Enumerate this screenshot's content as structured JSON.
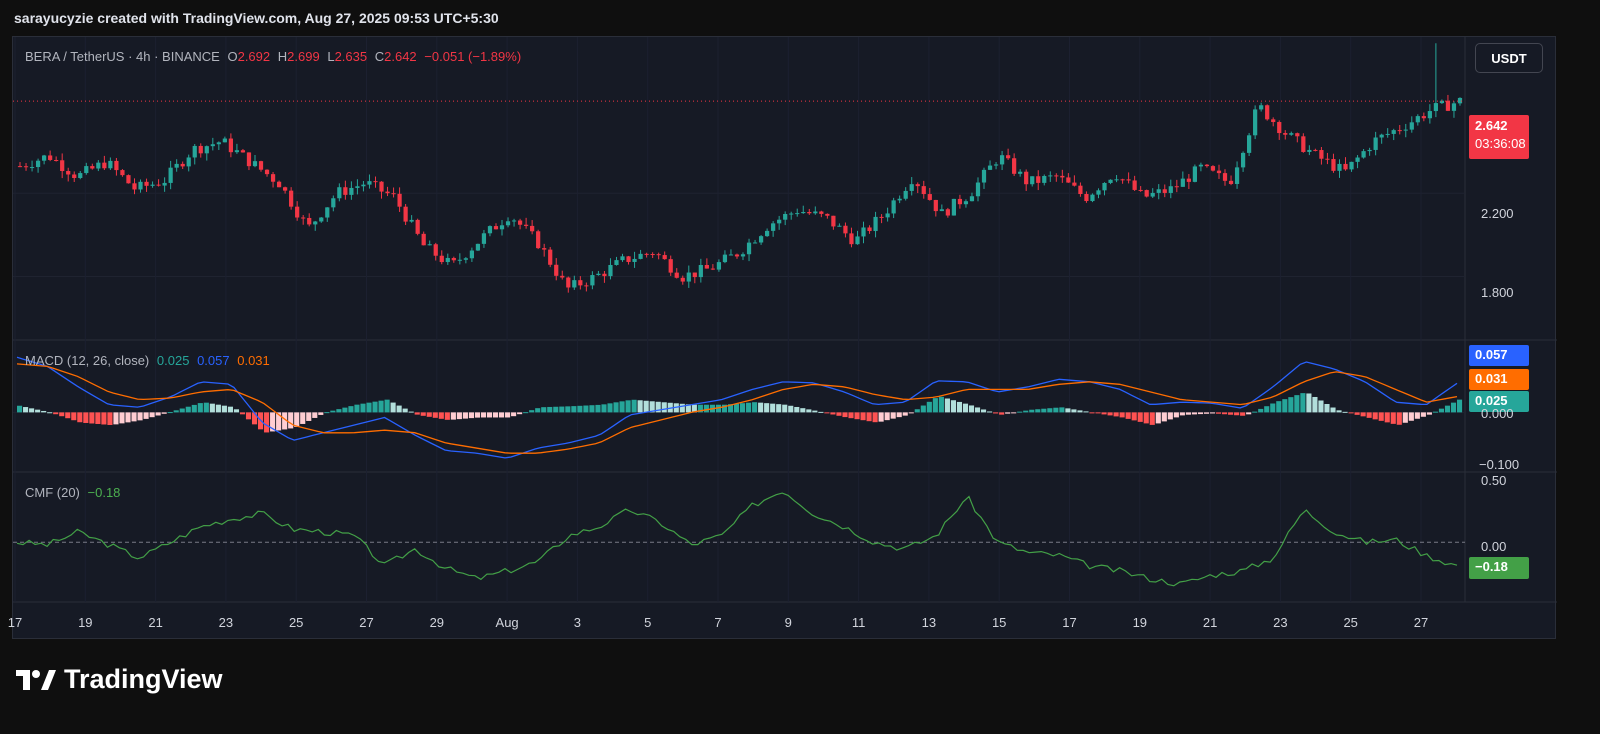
{
  "header": {
    "attribution": "sarayucyzie created with TradingView.com, Aug 27, 2025 09:53 UTC+5:30"
  },
  "legend": {
    "symbol": "BERA / TetherUS · 4h · BINANCE",
    "open_label": "O",
    "open": "2.692",
    "high_label": "H",
    "high": "2.699",
    "low_label": "L",
    "low": "2.635",
    "close_label": "C",
    "close": "2.642",
    "change": "−0.051 (−1.89%)"
  },
  "currency_button": "USDT",
  "price_badge": {
    "price": "2.642",
    "countdown": "03:36:08"
  },
  "macd": {
    "label": "MACD (12, 26, close)",
    "hist": "0.025",
    "macd": "0.057",
    "signal": "0.031"
  },
  "cmf": {
    "label": "CMF (20)",
    "value": "−0.18"
  },
  "logo_text": "TradingView",
  "colors": {
    "up": "#26a69a",
    "down": "#f23645",
    "macd": "#2962ff",
    "signal": "#ff6d00",
    "cmf": "#43a047"
  },
  "chart_data": [
    {
      "type": "candlestick",
      "title": "BERA / TetherUS · 4h · BINANCE",
      "yticks": [
        "2.200",
        "1.800"
      ],
      "ylim": [
        1.5,
        2.95
      ],
      "xticks": [
        "17",
        "19",
        "21",
        "23",
        "25",
        "27",
        "29",
        "Aug",
        "3",
        "5",
        "7",
        "9",
        "11",
        "13",
        "15",
        "17",
        "19",
        "21",
        "23",
        "25",
        "27"
      ],
      "close_path": [
        2.33,
        2.38,
        2.28,
        2.35,
        2.22,
        2.26,
        2.41,
        2.45,
        2.35,
        2.25,
        2.03,
        2.2,
        2.25,
        2.18,
        1.95,
        1.85,
        1.98,
        2.1,
        1.96,
        1.74,
        1.8,
        1.88,
        1.92,
        1.8,
        1.84,
        1.92,
        2.05,
        2.12,
        2.08,
        1.97,
        2.1,
        2.28,
        2.1,
        2.2,
        2.38,
        2.25,
        2.28,
        2.18,
        2.3,
        2.18,
        2.22,
        2.32,
        2.25,
        2.62,
        2.48,
        2.38,
        2.3,
        2.45,
        2.52,
        2.6,
        2.642
      ]
    },
    {
      "type": "line",
      "title": "MACD (12, 26, close)",
      "yticks": [
        "0.000",
        "−0.100"
      ],
      "ylim": [
        -0.115,
        0.14
      ],
      "series": [
        {
          "name": "MACD",
          "values": [
            0.108,
            0.09,
            0.05,
            0.015,
            0.01,
            0.03,
            0.06,
            0.055,
            -0.02,
            -0.055,
            -0.04,
            -0.025,
            -0.01,
            -0.045,
            -0.075,
            -0.08,
            -0.09,
            -0.07,
            -0.06,
            -0.045,
            -0.005,
            0.005,
            0.015,
            0.025,
            0.045,
            0.06,
            0.058,
            0.04,
            0.015,
            0.02,
            0.062,
            0.06,
            0.04,
            0.05,
            0.065,
            0.06,
            0.045,
            0.015,
            0.02,
            0.018,
            0.008,
            0.05,
            0.1,
            0.085,
            0.06,
            0.02,
            0.015,
            0.057
          ]
        },
        {
          "name": "Signal",
          "values": [
            0.095,
            0.09,
            0.07,
            0.04,
            0.025,
            0.028,
            0.04,
            0.045,
            0.02,
            -0.025,
            -0.04,
            -0.04,
            -0.035,
            -0.04,
            -0.06,
            -0.07,
            -0.08,
            -0.08,
            -0.072,
            -0.06,
            -0.03,
            -0.015,
            0.0,
            0.01,
            0.025,
            0.045,
            0.055,
            0.05,
            0.035,
            0.025,
            0.03,
            0.045,
            0.045,
            0.045,
            0.055,
            0.06,
            0.055,
            0.04,
            0.025,
            0.02,
            0.015,
            0.03,
            0.06,
            0.08,
            0.07,
            0.045,
            0.02,
            0.031
          ]
        }
      ],
      "histogram": [
        0.013,
        0.0,
        -0.02,
        -0.025,
        -0.015,
        0.002,
        0.02,
        0.01,
        -0.04,
        -0.03,
        0.0,
        0.015,
        0.025,
        -0.005,
        -0.015,
        -0.01,
        -0.01,
        0.01,
        0.012,
        0.015,
        0.025,
        0.02,
        0.015,
        0.015,
        0.02,
        0.015,
        0.003,
        -0.01,
        -0.02,
        -0.005,
        0.032,
        0.015,
        -0.005,
        0.005,
        0.01,
        0.0,
        -0.01,
        -0.025,
        -0.005,
        -0.002,
        -0.007,
        0.02,
        0.04,
        0.005,
        -0.01,
        -0.025,
        -0.005,
        0.025
      ]
    },
    {
      "type": "line",
      "title": "CMF (20)",
      "yticks": [
        "0.50",
        "0.00"
      ],
      "ylim": [
        -0.45,
        0.53
      ],
      "series": [
        {
          "name": "CMF",
          "values": [
            0.0,
            -0.02,
            0.08,
            -0.02,
            -0.12,
            0.0,
            0.12,
            0.18,
            0.22,
            0.1,
            0.08,
            0.05,
            -0.18,
            -0.05,
            -0.2,
            -0.28,
            -0.22,
            -0.15,
            0.05,
            0.12,
            0.25,
            0.15,
            -0.02,
            0.05,
            0.28,
            0.4,
            0.22,
            0.12,
            0.0,
            -0.05,
            0.05,
            0.35,
            0.0,
            -0.08,
            -0.1,
            -0.18,
            -0.22,
            -0.28,
            -0.32,
            -0.25,
            -0.22,
            -0.12,
            0.25,
            0.08,
            0.0,
            0.02,
            -0.1,
            -0.18
          ]
        }
      ]
    }
  ]
}
